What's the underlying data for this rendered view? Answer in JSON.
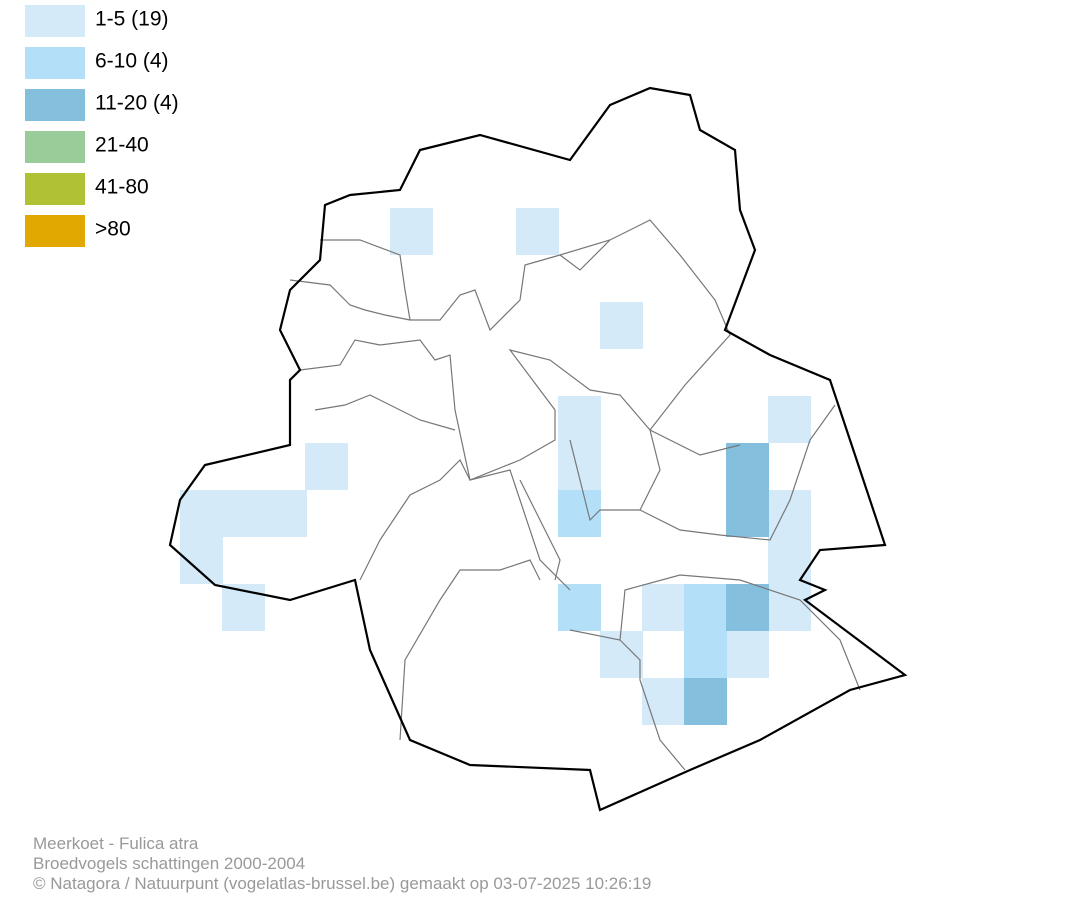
{
  "legend": [
    {
      "label": "1-5 (19)",
      "color": "#d4eaf9"
    },
    {
      "label": "6-10 (4)",
      "color": "#b3e0f8"
    },
    {
      "label": "11-20 (4)",
      "color": "#84c0de"
    },
    {
      "label": "21-40",
      "color": "#99cc99"
    },
    {
      "label": "41-80",
      "color": "#b0c234"
    },
    {
      "label": ">80",
      "color": "#e0a800"
    }
  ],
  "footer": {
    "species": "Meerkoet - Fulica atra",
    "survey": "Broedvogels schattingen 2000-2004",
    "credit": "© Natagora / Natuurpunt (vogelatlas-brussel.be) gemaakt op 03-07-2025 10:26:19"
  }
}
